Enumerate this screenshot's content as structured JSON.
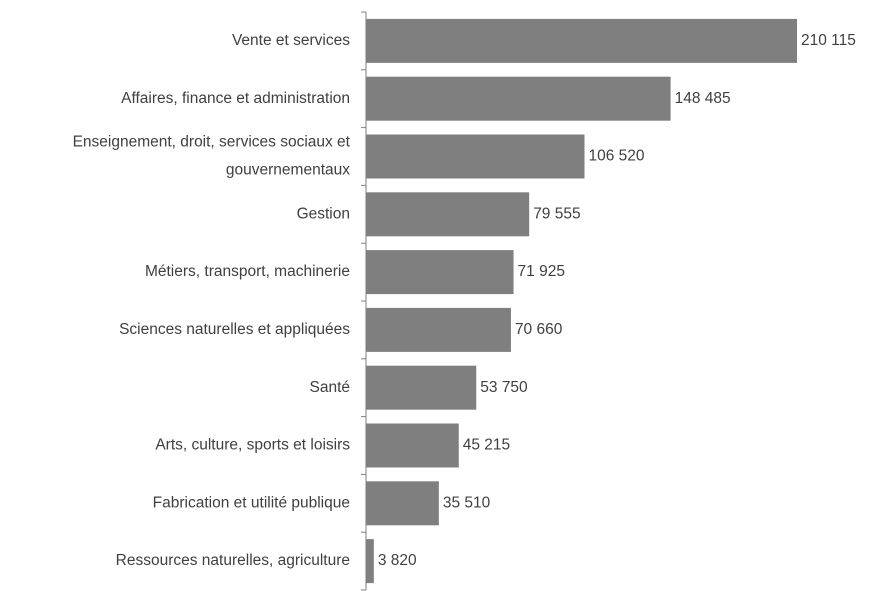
{
  "chart_data": {
    "type": "bar",
    "orientation": "horizontal",
    "categories": [
      "Vente et services",
      "Affaires, finance et administration",
      "Enseignement, droit, services sociaux et\ngouvernementaux",
      "Gestion",
      "Métiers, transport, machinerie",
      "Sciences naturelles et appliquées",
      "Santé",
      "Arts, culture, sports et loisirs",
      "Fabrication et utilité publique",
      "Ressources naturelles, agriculture"
    ],
    "values": [
      210115,
      148485,
      106520,
      79555,
      71925,
      70660,
      53750,
      45215,
      35510,
      3820
    ],
    "value_labels": [
      "210 115",
      "148 485",
      "106 520",
      "79 555",
      "71 925",
      "70 660",
      "53 750",
      "45 215",
      "35 510",
      "3 820"
    ],
    "color": "#7f7f7f"
  }
}
